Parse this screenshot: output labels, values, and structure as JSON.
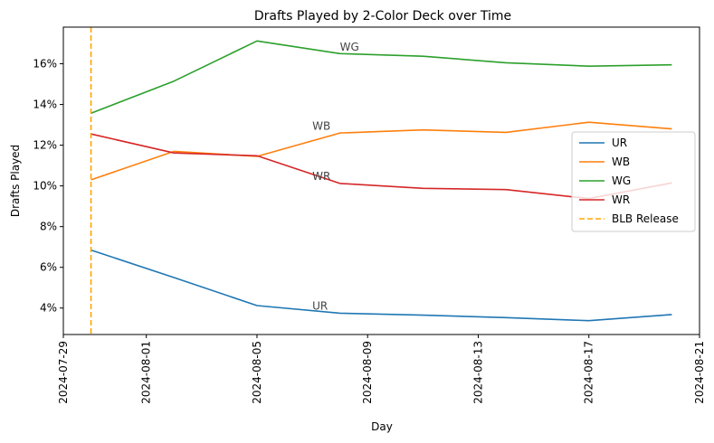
{
  "chart_data": {
    "type": "line",
    "title": "Drafts Played by 2-Color Deck over Time",
    "xlabel": "Day",
    "ylabel": "Drafts Played",
    "xlim": [
      "2024-07-29",
      "2024-08-21"
    ],
    "ylim": [
      0.027,
      0.178
    ],
    "xticks": [
      "2024-07-29",
      "2024-08-01",
      "2024-08-05",
      "2024-08-09",
      "2024-08-13",
      "2024-08-17",
      "2024-08-21"
    ],
    "yticks": [
      {
        "value": 0.04,
        "label": "4%"
      },
      {
        "value": 0.06,
        "label": "6%"
      },
      {
        "value": 0.08,
        "label": "8%"
      },
      {
        "value": 0.1,
        "label": "10%"
      },
      {
        "value": 0.12,
        "label": "12%"
      },
      {
        "value": 0.14,
        "label": "14%"
      },
      {
        "value": 0.16,
        "label": "16%"
      }
    ],
    "grid": false,
    "legend_position": "center-right",
    "series": [
      {
        "name": "UR",
        "color": "#1f77b4",
        "x": [
          "2024-07-30",
          "2024-08-02",
          "2024-08-05",
          "2024-08-08",
          "2024-08-11",
          "2024-08-14",
          "2024-08-17",
          "2024-08-20"
        ],
        "values": [
          0.0685,
          0.055,
          0.0412,
          0.0375,
          0.0365,
          0.0353,
          0.0338,
          0.0368
        ]
      },
      {
        "name": "WB",
        "color": "#ff7f0e",
        "x": [
          "2024-07-30",
          "2024-08-02",
          "2024-08-05",
          "2024-08-08",
          "2024-08-11",
          "2024-08-14",
          "2024-08-17",
          "2024-08-20"
        ],
        "values": [
          0.103,
          0.117,
          0.1145,
          0.126,
          0.1275,
          0.1263,
          0.1313,
          0.128
        ]
      },
      {
        "name": "WG",
        "color": "#2ca02c",
        "x": [
          "2024-07-30",
          "2024-08-02",
          "2024-08-05",
          "2024-08-08",
          "2024-08-11",
          "2024-08-14",
          "2024-08-17",
          "2024-08-20"
        ],
        "values": [
          0.1357,
          0.1515,
          0.1712,
          0.165,
          0.1637,
          0.1605,
          0.1588,
          0.1595
        ]
      },
      {
        "name": "WR",
        "color": "#d62728",
        "x": [
          "2024-07-30",
          "2024-08-02",
          "2024-08-05",
          "2024-08-08",
          "2024-08-11",
          "2024-08-14",
          "2024-08-17",
          "2024-08-20"
        ],
        "values": [
          0.1255,
          0.1162,
          0.1148,
          0.1012,
          0.0988,
          0.0982,
          0.0938,
          0.1015
        ]
      }
    ],
    "vline": {
      "x": "2024-07-30",
      "label": "BLB Release",
      "color": "#ffa500",
      "style": "dashed"
    },
    "annotations": [
      {
        "text": "WG",
        "x": "2024-08-08",
        "y": 0.1665
      },
      {
        "text": "WB",
        "x": "2024-08-07",
        "y": 0.1275
      },
      {
        "text": "WR",
        "x": "2024-08-07",
        "y": 0.103
      },
      {
        "text": "UR",
        "x": "2024-08-07",
        "y": 0.0393
      }
    ]
  }
}
